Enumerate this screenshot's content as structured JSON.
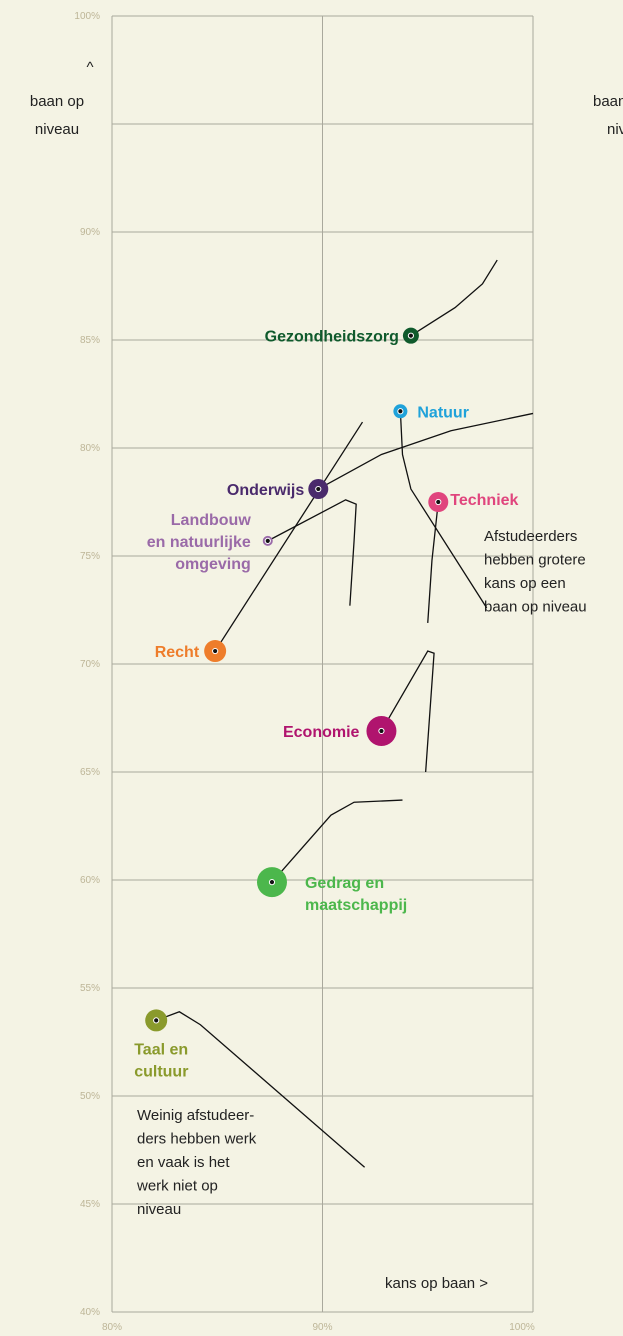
{
  "chart_data": {
    "type": "bubble",
    "ylabel": [
      "^",
      "baan op",
      "niveau"
    ],
    "xlabel": "kans op baan >",
    "annotations": [
      [
        "Afstudeerders",
        "hebben grotere",
        "kans op een",
        "baan op niveau"
      ],
      [
        "Weinig afstudeer-",
        "ders hebben werk",
        "en vaak is het",
        "werk niet op",
        "niveau"
      ]
    ],
    "xlim": [
      80,
      100
    ],
    "ylim": [
      40,
      100
    ],
    "xticks": [
      {
        "value": 80,
        "label": "80%"
      },
      {
        "value": 90,
        "label": "90%"
      },
      {
        "value": 100,
        "label": "100%"
      }
    ],
    "yticks": [
      {
        "value": 40,
        "label": "40%"
      },
      {
        "value": 45,
        "label": "45%"
      },
      {
        "value": 50,
        "label": "50%"
      },
      {
        "value": 55,
        "label": "55%"
      },
      {
        "value": 60,
        "label": "60%"
      },
      {
        "value": 65,
        "label": "65%"
      },
      {
        "value": 70,
        "label": "70%"
      },
      {
        "value": 75,
        "label": "75%"
      },
      {
        "value": 80,
        "label": "80%"
      },
      {
        "value": 85,
        "label": "85%"
      },
      {
        "value": 90,
        "label": "90%"
      },
      {
        "value": 95,
        "label": null
      },
      {
        "value": 100,
        "label": "100%"
      }
    ],
    "grid": true,
    "points": [
      {
        "label": [
          "Gezondheidszorg"
        ],
        "color": "#0f5a2c",
        "x": 94.2,
        "y": 85.2,
        "size": 8,
        "trail_x": [
          94.2,
          96.3,
          97.6,
          98.3
        ],
        "trail_y": [
          85.2,
          86.5,
          87.6,
          88.7
        ]
      },
      {
        "label": [
          "Natuur"
        ],
        "color": "#1fa2da",
        "x": 93.7,
        "y": 81.7,
        "size": 7,
        "trail_x": [
          93.7,
          93.8,
          94.2,
          97.8
        ],
        "trail_y": [
          81.7,
          79.7,
          78.1,
          72.6
        ]
      },
      {
        "label": [
          "Onderwijs"
        ],
        "color": "#4a2a6c",
        "x": 89.8,
        "y": 78.1,
        "size": 10,
        "trail_x": [
          89.8,
          92.8,
          96.1,
          100
        ],
        "trail_y": [
          78.1,
          79.7,
          80.8,
          81.6
        ]
      },
      {
        "label": [
          "Landbouw",
          "en natuurlijke",
          "omgeving"
        ],
        "color": "#9a6aa8",
        "x": 87.4,
        "y": 75.7,
        "size": 5,
        "trail_x": [
          87.4,
          91.1,
          91.6,
          91.5,
          91.3
        ],
        "trail_y": [
          75.7,
          77.6,
          77.4,
          75.7,
          72.7
        ]
      },
      {
        "label": [
          "Techniek"
        ],
        "color": "#e0457d",
        "x": 95.5,
        "y": 77.5,
        "size": 10,
        "trail_x": [
          95.5,
          95.2,
          95.0
        ],
        "trail_y": [
          77.5,
          74.8,
          71.9
        ]
      },
      {
        "label": [
          "Recht"
        ],
        "color": "#ee7d2b",
        "x": 84.9,
        "y": 70.6,
        "size": 11,
        "trail_x": [
          84.9,
          91.9
        ],
        "trail_y": [
          70.6,
          81.2
        ]
      },
      {
        "label": [
          "Economie"
        ],
        "color": "#b0146e",
        "x": 92.8,
        "y": 66.9,
        "size": 15,
        "trail_x": [
          92.8,
          95.0,
          95.3,
          94.9
        ],
        "trail_y": [
          66.9,
          70.6,
          70.5,
          65.0
        ]
      },
      {
        "label": [
          "Gedrag en",
          "maatschappij"
        ],
        "color": "#4cb74c",
        "x": 87.6,
        "y": 59.9,
        "size": 15,
        "trail_x": [
          87.6,
          90.4,
          91.5,
          93.8
        ],
        "trail_y": [
          59.9,
          63.0,
          63.6,
          63.7
        ]
      },
      {
        "label": [
          "Taal en",
          "cultuur"
        ],
        "color": "#8a9a2c",
        "x": 82.1,
        "y": 53.5,
        "size": 11,
        "trail_x": [
          82.1,
          83.2,
          84.2,
          92.0
        ],
        "trail_y": [
          53.5,
          53.9,
          53.3,
          46.7
        ]
      }
    ]
  }
}
